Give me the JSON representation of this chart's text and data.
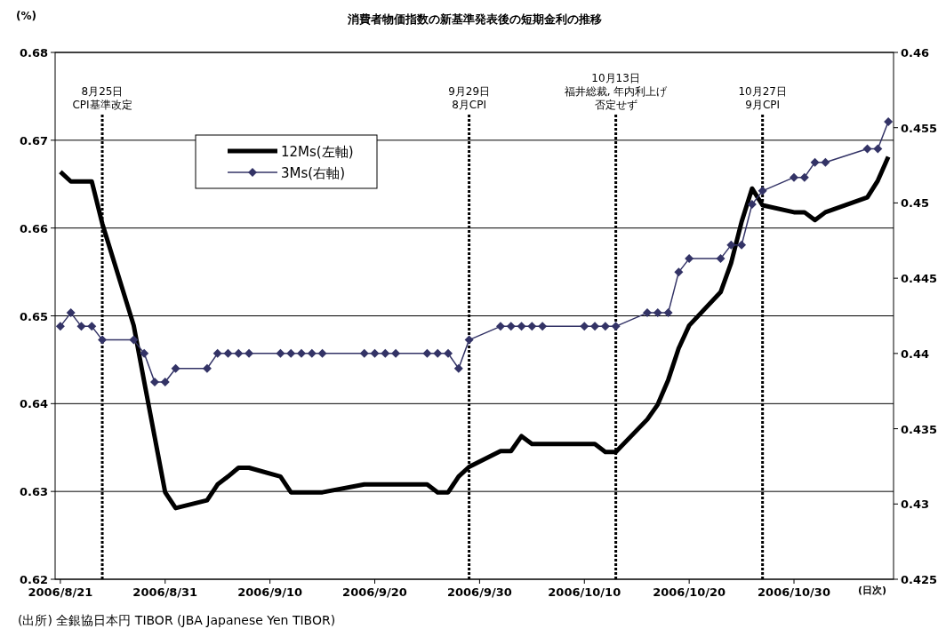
{
  "chart_data": {
    "type": "line",
    "title": "消費者物価指数の新基準発表後の短期金利の推移",
    "ylabel": "(%)",
    "xlabel": "(日次)",
    "annotations": [
      "(出所) 全銀協日本円 TIBOR (JBA Japanese Yen TIBOR)"
    ],
    "x": [
      "2006-08-21",
      "2006-08-22",
      "2006-08-23",
      "2006-08-24",
      "2006-08-25",
      "2006-08-28",
      "2006-08-29",
      "2006-08-30",
      "2006-08-31",
      "2006-09-01",
      "2006-09-04",
      "2006-09-05",
      "2006-09-06",
      "2006-09-07",
      "2006-09-08",
      "2006-09-11",
      "2006-09-12",
      "2006-09-13",
      "2006-09-14",
      "2006-09-15",
      "2006-09-19",
      "2006-09-20",
      "2006-09-21",
      "2006-09-22",
      "2006-09-25",
      "2006-09-26",
      "2006-09-27",
      "2006-09-28",
      "2006-09-29",
      "2006-10-02",
      "2006-10-03",
      "2006-10-04",
      "2006-10-05",
      "2006-10-06",
      "2006-10-10",
      "2006-10-11",
      "2006-10-12",
      "2006-10-13",
      "2006-10-16",
      "2006-10-17",
      "2006-10-18",
      "2006-10-19",
      "2006-10-20",
      "2006-10-23",
      "2006-10-24",
      "2006-10-25",
      "2006-10-26",
      "2006-10-27",
      "2006-10-30",
      "2006-10-31",
      "2006-11-01",
      "2006-11-02",
      "2006-11-06",
      "2006-11-07",
      "2006-11-08"
    ],
    "series": [
      {
        "name": "12Ms(左軸)",
        "color": "#000000",
        "marker": "none",
        "values": [
          0.6664,
          0.6653,
          0.6653,
          0.6653,
          0.6605,
          0.6489,
          0.6425,
          0.6362,
          0.6299,
          0.6281,
          0.629,
          0.6308,
          0.6317,
          0.6327,
          0.6327,
          0.6317,
          0.6299,
          0.6299,
          0.6299,
          0.6299,
          0.6308,
          0.6308,
          0.6308,
          0.6308,
          0.6308,
          0.6299,
          0.6299,
          0.6317,
          0.6328,
          0.6346,
          0.6346,
          0.6363,
          0.6354,
          0.6354,
          0.6354,
          0.6354,
          0.6345,
          0.6345,
          0.6382,
          0.6399,
          0.6427,
          0.6463,
          0.6489,
          0.6527,
          0.656,
          0.6607,
          0.6645,
          0.6626,
          0.6618,
          0.6618,
          0.6609,
          0.6618,
          0.6635,
          0.6654,
          0.6681
        ]
      },
      {
        "name": "3Ms(右軸)",
        "color": "#333366",
        "marker": "diamond",
        "axis": "y2",
        "values": [
          0.4418,
          0.4427,
          0.4418,
          0.4418,
          0.4409,
          0.4409,
          0.44,
          0.4381,
          0.4381,
          0.439,
          0.439,
          0.44,
          0.44,
          0.44,
          0.44,
          0.44,
          0.44,
          0.44,
          0.44,
          0.44,
          0.44,
          0.44,
          0.44,
          0.44,
          0.44,
          0.44,
          0.44,
          0.439,
          0.4409,
          0.4418,
          0.4418,
          0.4418,
          0.4418,
          0.4418,
          0.4418,
          0.4418,
          0.4418,
          0.4418,
          0.4427,
          0.4427,
          0.4427,
          0.4454,
          0.4463,
          0.4463,
          0.4472,
          0.4472,
          0.4499,
          0.4508,
          0.4517,
          0.4517,
          0.4527,
          0.4527,
          0.4536,
          0.4536,
          0.4554
        ]
      }
    ],
    "xlim": [
      "2006-08-20T12:00",
      "2006-11-08T12:00"
    ],
    "xticks": [
      {
        "value": "2006-08-21",
        "label": "2006/8/21"
      },
      {
        "value": "2006-08-31",
        "label": "2006/8/31"
      },
      {
        "value": "2006-09-10",
        "label": "2006/9/10"
      },
      {
        "value": "2006-09-20",
        "label": "2006/9/20"
      },
      {
        "value": "2006-09-30",
        "label": "2006/9/30"
      },
      {
        "value": "2006-10-10",
        "label": "2006/10/10"
      },
      {
        "value": "2006-10-20",
        "label": "2006/10/20"
      },
      {
        "value": "2006-10-30",
        "label": "2006/10/30"
      }
    ],
    "ylim": [
      0.62,
      0.68
    ],
    "yticks": [
      0.62,
      0.63,
      0.64,
      0.65,
      0.66,
      0.67,
      0.68
    ],
    "y2lim": [
      0.425,
      0.46
    ],
    "y2ticks": [
      0.425,
      0.43,
      0.435,
      0.44,
      0.445,
      0.45,
      0.455,
      0.46
    ],
    "ref_lines": [
      {
        "axis": "x",
        "value": "2006-08-25",
        "label": [
          "8月25日",
          "CPI基準改定"
        ],
        "color": "#000000",
        "line_style": "dotted"
      },
      {
        "axis": "x",
        "value": "2006-09-29",
        "label": [
          "9月29日",
          "8月CPI"
        ],
        "color": "#000000",
        "line_style": "dotted"
      },
      {
        "axis": "x",
        "value": "2006-10-13",
        "label": [
          "10月13日",
          "福井総裁, 年内利上げ",
          "否定せず"
        ],
        "color": "#000000",
        "line_style": "dotted"
      },
      {
        "axis": "x",
        "value": "2006-10-27",
        "label": [
          "10月27日",
          "9月CPI"
        ],
        "color": "#000000",
        "line_style": "dotted"
      }
    ],
    "grid": "y",
    "legend": "top left",
    "line_style": "solid"
  }
}
